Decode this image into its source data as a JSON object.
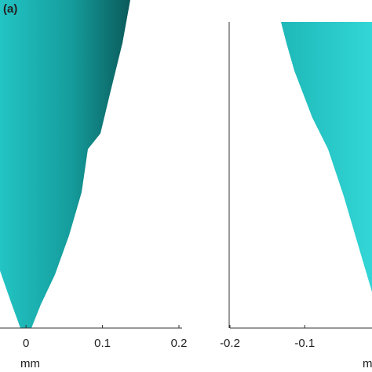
{
  "chart_data": [
    {
      "type": "surface",
      "panel_label": "(a)",
      "xlabel": "mm",
      "xlim": [
        -0.034,
        0.2
      ],
      "xticks": [
        0,
        0.1,
        0.2
      ]
    },
    {
      "type": "surface",
      "xlabel": "mm",
      "xlim": [
        -0.2,
        -0.01
      ],
      "xticks": [
        -0.2,
        -0.1
      ]
    }
  ]
}
